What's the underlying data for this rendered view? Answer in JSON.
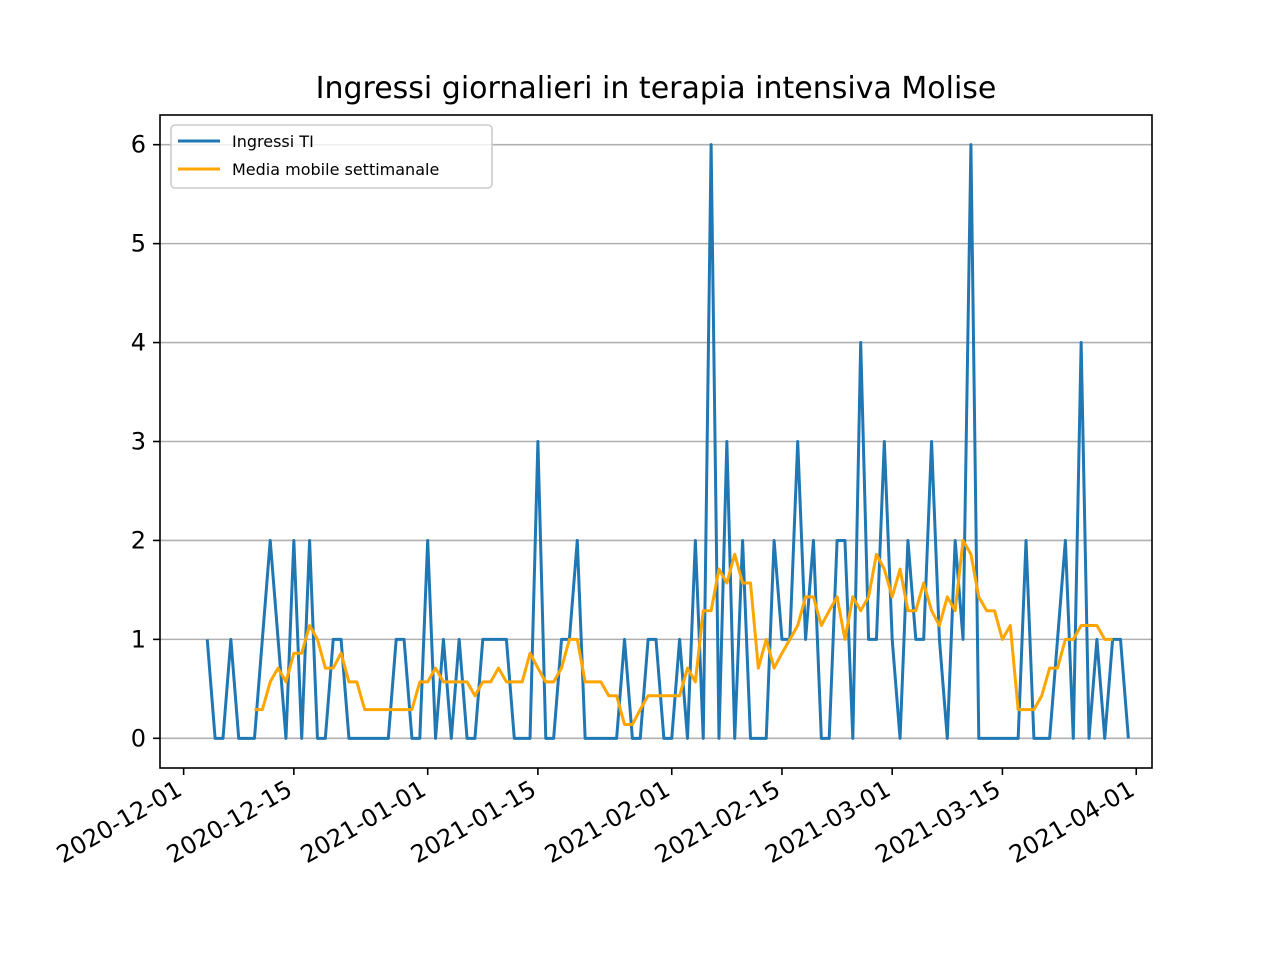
{
  "chart_data": {
    "type": "line",
    "title": "Ingressi giornalieri in terapia intensiva Molise",
    "xlabel": "",
    "ylabel": "",
    "x_ticks": [
      "2020-12-01",
      "2020-12-15",
      "2021-01-01",
      "2021-01-15",
      "2021-02-01",
      "2021-02-15",
      "2021-03-01",
      "2021-03-15",
      "2021-04-01"
    ],
    "y_ticks": [
      "0",
      "1",
      "2",
      "3",
      "4",
      "5",
      "6"
    ],
    "ylim": [
      -0.3,
      6.3
    ],
    "xlim": [
      "2020-11-28",
      "2021-04-03"
    ],
    "grid": "horizontal",
    "legend_position": "upper left",
    "series": [
      {
        "name": "Ingressi TI",
        "color": "#1f77b4",
        "start_date": "2020-12-04",
        "values": [
          1,
          0,
          0,
          1,
          0,
          0,
          0,
          1,
          2,
          1,
          0,
          2,
          0,
          2,
          0,
          0,
          1,
          1,
          0,
          0,
          0,
          0,
          0,
          0,
          1,
          1,
          0,
          0,
          2,
          0,
          1,
          0,
          1,
          0,
          0,
          1,
          1,
          1,
          1,
          0,
          0,
          0,
          3,
          0,
          0,
          1,
          1,
          2,
          0,
          0,
          0,
          0,
          0,
          1,
          0,
          0,
          1,
          1,
          0,
          0,
          1,
          0,
          2,
          0,
          6,
          0,
          3,
          0,
          2,
          0,
          0,
          0,
          2,
          1,
          1,
          3,
          1,
          2,
          0,
          0,
          2,
          2,
          0,
          4,
          1,
          1,
          3,
          1,
          0,
          2,
          1,
          1,
          3,
          1,
          0,
          2,
          1,
          6,
          0,
          0,
          0,
          0,
          0,
          0,
          2,
          0,
          0,
          0,
          1,
          2,
          0,
          4,
          0,
          1,
          0,
          1,
          1,
          0
        ]
      },
      {
        "name": "Media mobile settimanale",
        "color": "#ffa500",
        "start_date": "2020-12-10",
        "values": [
          0.29,
          0.29,
          0.57,
          0.71,
          0.57,
          0.86,
          0.86,
          1.14,
          1.0,
          0.71,
          0.71,
          0.86,
          0.57,
          0.57,
          0.29,
          0.29,
          0.29,
          0.29,
          0.29,
          0.29,
          0.29,
          0.57,
          0.57,
          0.71,
          0.57,
          0.57,
          0.57,
          0.57,
          0.43,
          0.57,
          0.57,
          0.71,
          0.57,
          0.57,
          0.57,
          0.86,
          0.71,
          0.57,
          0.57,
          0.71,
          1.0,
          1.0,
          0.57,
          0.57,
          0.57,
          0.43,
          0.43,
          0.14,
          0.14,
          0.29,
          0.43,
          0.43,
          0.43,
          0.43,
          0.43,
          0.71,
          0.57,
          1.29,
          1.29,
          1.71,
          1.57,
          1.86,
          1.57,
          1.57,
          0.71,
          1.0,
          0.71,
          0.86,
          1.0,
          1.14,
          1.43,
          1.43,
          1.14,
          1.29,
          1.43,
          1.0,
          1.43,
          1.29,
          1.43,
          1.86,
          1.71,
          1.43,
          1.71,
          1.29,
          1.29,
          1.57,
          1.29,
          1.14,
          1.43,
          1.29,
          2.0,
          1.86,
          1.43,
          1.29,
          1.29,
          1.0,
          1.14,
          0.29,
          0.29,
          0.29,
          0.43,
          0.71,
          0.71,
          1.0,
          1.0,
          1.14,
          1.14,
          1.14,
          1.0,
          1.0
        ]
      }
    ]
  }
}
